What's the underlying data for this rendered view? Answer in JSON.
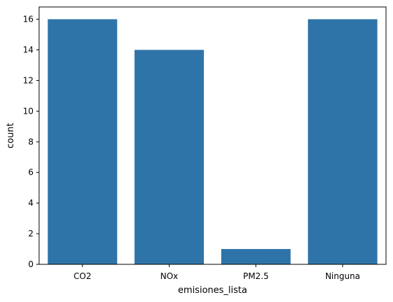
{
  "chart_data": {
    "type": "bar",
    "categories": [
      "CO2",
      "NOx",
      "PM2.5",
      "Ninguna"
    ],
    "values": [
      16,
      14,
      1,
      16
    ],
    "xlabel": "emisiones_lista",
    "ylabel": "count",
    "ylim": [
      0,
      16.8
    ],
    "yticks": [
      0,
      2,
      4,
      6,
      8,
      10,
      12,
      14,
      16
    ],
    "bar_color": "#2f74a8",
    "grid": false,
    "legend": "none"
  }
}
